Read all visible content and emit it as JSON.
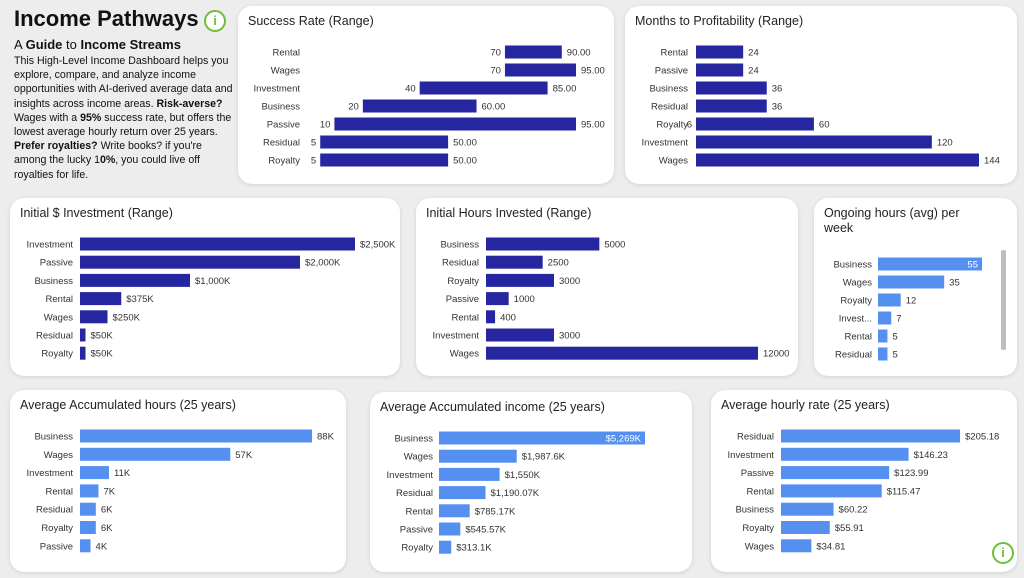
{
  "intro": {
    "title": "Income Pathways",
    "info_glyph": "i",
    "subhead": {
      "pre": "A ",
      "b1": "Guide",
      "mid": " to ",
      "b2": "Income Streams"
    },
    "desc": [
      {
        "t": "This High-Level Income Dashboard helps you explore, compare, and analyze income opportunities with AI-derived average data and insights across income areas.  ",
        "b": false
      },
      {
        "t": "Risk-averse?",
        "b": true
      },
      {
        "t": " Wages with a ",
        "b": false
      },
      {
        "t": "95%",
        "b": true
      },
      {
        "t": " success rate, but offers the lowest average hourly return over 25 years.  ",
        "b": false
      },
      {
        "t": "Prefer royalties?",
        "b": true
      },
      {
        "t": " Write books? if you're among the lucky 1",
        "b": false
      },
      {
        "t": "0%",
        "b": true
      },
      {
        "t": ", you could live off royalties for life.",
        "b": false
      }
    ]
  },
  "colors": {
    "dark_bar": "#2626a0",
    "light_bar": "#5590f0",
    "info_green": "#6cbf3a"
  },
  "chart_data": [
    {
      "id": "success",
      "type": "bar",
      "orientation": "horizontal",
      "range": true,
      "title": "Success Rate (Range)",
      "categories": [
        "Rental",
        "Wages",
        "Investment",
        "Business",
        "Passive",
        "Residual",
        "Royalty"
      ],
      "low": [
        70,
        70,
        40,
        20,
        10,
        5,
        5
      ],
      "low_labels": [
        "70",
        "70",
        "40",
        "20",
        "10",
        "5",
        "5"
      ],
      "high": [
        90,
        95,
        85,
        60,
        95,
        50,
        50
      ],
      "high_labels": [
        "90.00",
        "95.00",
        "85.00",
        "60.00",
        "95.00",
        "50.00",
        "50.00"
      ],
      "xlim": [
        0,
        95
      ],
      "color": "dark"
    },
    {
      "id": "months",
      "type": "bar",
      "orientation": "horizontal",
      "title": "Months to Profitability (Range)",
      "categories": [
        "Rental",
        "Passive",
        "Business",
        "Residual",
        "Royalty",
        "Investment",
        "Wages"
      ],
      "values": [
        24,
        24,
        36,
        36,
        60,
        120,
        144
      ],
      "labels": [
        "24",
        "24",
        "36",
        "36",
        "60",
        "120",
        "144"
      ],
      "low_labels": [
        "",
        "",
        "",
        "",
        "6",
        "",
        ""
      ],
      "xlim": [
        0,
        144
      ],
      "color": "dark"
    },
    {
      "id": "investment",
      "type": "bar",
      "orientation": "horizontal",
      "title": "Initial $ Investment (Range)",
      "categories": [
        "Investment",
        "Passive",
        "Business",
        "Rental",
        "Wages",
        "Residual",
        "Royalty"
      ],
      "values": [
        2500,
        2000,
        1000,
        375,
        250,
        50,
        50
      ],
      "labels": [
        "$2,500K",
        "$2,000K",
        "$1,000K",
        "$375K",
        "$250K",
        "$50K",
        "$50K"
      ],
      "xlim": [
        0,
        2500
      ],
      "unit": "$K",
      "color": "dark"
    },
    {
      "id": "hours",
      "type": "bar",
      "orientation": "horizontal",
      "title": "Initial Hours Invested (Range)",
      "categories": [
        "Business",
        "Residual",
        "Royalty",
        "Passive",
        "Rental",
        "Investment",
        "Wages"
      ],
      "values": [
        5000,
        2500,
        3000,
        1000,
        400,
        3000,
        12000
      ],
      "labels": [
        "5000",
        "2500",
        "3000",
        "1000",
        "400",
        "3000",
        "12000"
      ],
      "xlim": [
        0,
        12000
      ],
      "color": "dark"
    },
    {
      "id": "ongoing",
      "type": "bar",
      "orientation": "horizontal",
      "title": "Ongoing hours (avg) per week",
      "categories": [
        "Business",
        "Wages",
        "Royalty",
        "Invest...",
        "Rental",
        "Residual"
      ],
      "values": [
        55,
        35,
        12,
        7,
        5,
        5
      ],
      "labels": [
        "55",
        "35",
        "12",
        "7",
        "5",
        "5"
      ],
      "xlim": [
        0,
        55
      ],
      "color": "light"
    },
    {
      "id": "acc_hours",
      "type": "bar",
      "orientation": "horizontal",
      "title": "Average Accumulated hours (25 years)",
      "categories": [
        "Business",
        "Wages",
        "Investment",
        "Rental",
        "Residual",
        "Royalty",
        "Passive"
      ],
      "values": [
        88,
        57,
        11,
        7,
        6,
        6,
        4
      ],
      "labels": [
        "88K",
        "57K",
        "11K",
        "7K",
        "6K",
        "6K",
        "4K"
      ],
      "xlim": [
        0,
        88
      ],
      "unit": "K hours",
      "color": "light"
    },
    {
      "id": "acc_income",
      "type": "bar",
      "orientation": "horizontal",
      "title": "Average Accumulated income (25 years)",
      "categories": [
        "Business",
        "Wages",
        "Investment",
        "Residual",
        "Rental",
        "Passive",
        "Royalty"
      ],
      "values": [
        5269,
        1987.6,
        1550,
        1190.07,
        785.17,
        545.57,
        313.1
      ],
      "labels": [
        "$5,269K",
        "$1,987.6K",
        "$1,550K",
        "$1,190.07K",
        "$785.17K",
        "$545.57K",
        "$313.1K"
      ],
      "xlim": [
        0,
        5269
      ],
      "unit": "$K",
      "color": "light"
    },
    {
      "id": "hourly",
      "type": "bar",
      "orientation": "horizontal",
      "title": "Average hourly rate (25 years)",
      "categories": [
        "Residual",
        "Investment",
        "Passive",
        "Rental",
        "Business",
        "Royalty",
        "Wages"
      ],
      "values": [
        205.18,
        146.23,
        123.99,
        115.47,
        60.22,
        55.91,
        34.81
      ],
      "labels": [
        "$205.18",
        "$146.23",
        "$123.99",
        "$115.47",
        "$60.22",
        "$55.91",
        "$34.81"
      ],
      "xlim": [
        0,
        205.18
      ],
      "unit": "$",
      "color": "light"
    }
  ]
}
